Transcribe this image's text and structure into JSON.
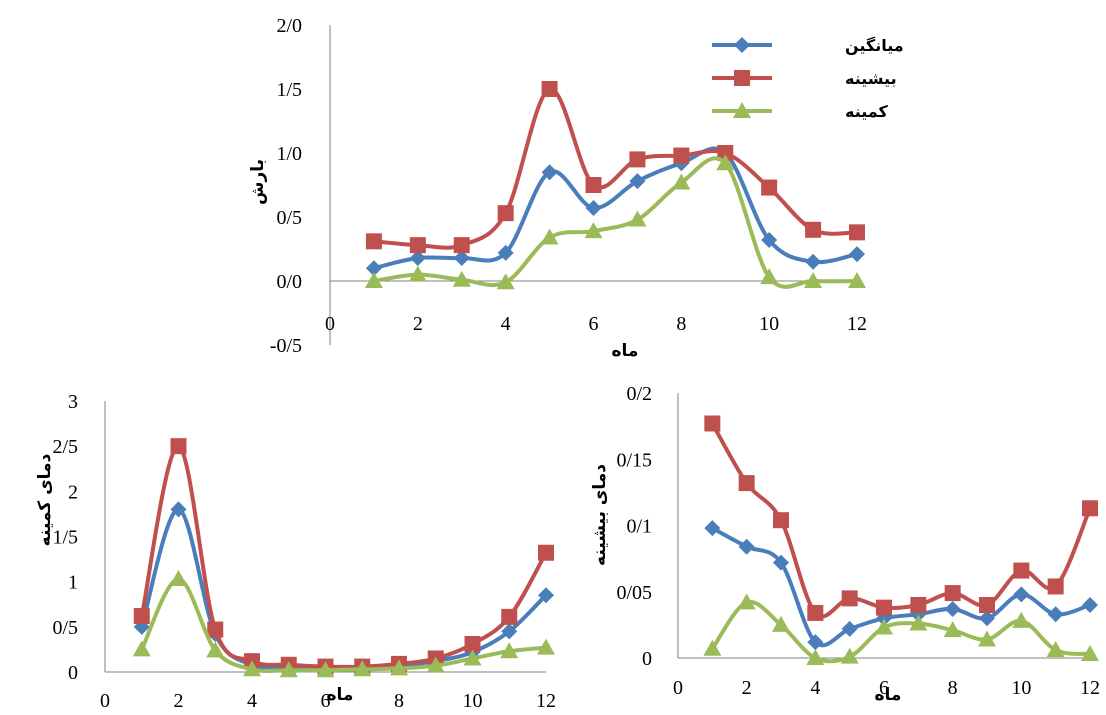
{
  "colors": {
    "mean": "#4A7EBB",
    "max": "#C0504D",
    "min": "#9BBB59",
    "axis": "#808080"
  },
  "legend": {
    "mean": "میانگین",
    "max": "بیشینه",
    "min": "کمینه",
    "placement": "top-right"
  },
  "chart_data": [
    {
      "type": "line",
      "title": "",
      "xlabel": "ماه",
      "ylabel": "بارش",
      "xlim": [
        0,
        12
      ],
      "ylim": [
        -0.5,
        2.0
      ],
      "x_ticks": [
        "0",
        "2",
        "4",
        "6",
        "8",
        "10",
        "12"
      ],
      "y_ticks": [
        "-0/5",
        "0/0",
        "0/5",
        "1/0",
        "1/5",
        "2/0"
      ],
      "x": [
        1,
        2,
        3,
        4,
        5,
        6,
        7,
        8,
        9,
        10,
        11,
        12
      ],
      "series": [
        {
          "name": "میانگین",
          "values": [
            0.1,
            0.18,
            0.18,
            0.22,
            0.85,
            0.57,
            0.78,
            0.92,
            1.0,
            0.32,
            0.15,
            0.21
          ]
        },
        {
          "name": "بیشینه",
          "values": [
            0.31,
            0.28,
            0.28,
            0.53,
            1.5,
            0.75,
            0.95,
            0.98,
            1.0,
            0.73,
            0.4,
            0.38
          ]
        },
        {
          "name": "کمینه",
          "values": [
            0.0,
            0.05,
            0.01,
            -0.01,
            0.34,
            0.39,
            0.48,
            0.77,
            0.92,
            0.03,
            0.0,
            0.0
          ]
        }
      ]
    },
    {
      "type": "line",
      "title": "",
      "xlabel": "ماه",
      "ylabel": "دمای کمینه",
      "xlim": [
        0,
        12
      ],
      "ylim": [
        0,
        3
      ],
      "x_ticks": [
        "0",
        "2",
        "4",
        "6",
        "8",
        "10",
        "12"
      ],
      "y_ticks": [
        "0",
        "0/5",
        "1",
        "1/5",
        "2",
        "2/5",
        "3"
      ],
      "x": [
        1,
        2,
        3,
        4,
        5,
        6,
        7,
        8,
        9,
        10,
        11,
        12
      ],
      "series": [
        {
          "name": "میانگین",
          "values": [
            0.5,
            1.8,
            0.42,
            0.08,
            0.06,
            0.05,
            0.05,
            0.07,
            0.12,
            0.22,
            0.45,
            0.85
          ]
        },
        {
          "name": "بیشینه",
          "values": [
            0.62,
            2.5,
            0.47,
            0.12,
            0.08,
            0.06,
            0.06,
            0.09,
            0.15,
            0.31,
            0.61,
            1.32
          ]
        },
        {
          "name": "کمینه",
          "values": [
            0.25,
            1.03,
            0.24,
            0.03,
            0.02,
            0.02,
            0.03,
            0.04,
            0.07,
            0.15,
            0.23,
            0.27
          ]
        }
      ]
    },
    {
      "type": "line",
      "title": "",
      "xlabel": "ماه",
      "ylabel": "دمای بیشینه",
      "xlim": [
        0,
        12
      ],
      "ylim": [
        0,
        0.2
      ],
      "x_ticks": [
        "0",
        "2",
        "4",
        "6",
        "8",
        "10",
        "12"
      ],
      "y_ticks": [
        "0",
        "0/05",
        "0/1",
        "0/15",
        "0/2"
      ],
      "x": [
        1,
        2,
        3,
        4,
        5,
        6,
        7,
        8,
        9,
        10,
        11,
        12
      ],
      "series": [
        {
          "name": "میانگین",
          "values": [
            0.098,
            0.084,
            0.072,
            0.012,
            0.022,
            0.03,
            0.033,
            0.037,
            0.03,
            0.048,
            0.033,
            0.04
          ]
        },
        {
          "name": "بیشینه",
          "values": [
            0.177,
            0.132,
            0.104,
            0.034,
            0.045,
            0.038,
            0.04,
            0.049,
            0.04,
            0.066,
            0.054,
            0.113
          ]
        },
        {
          "name": "کمینه",
          "values": [
            0.007,
            0.042,
            0.025,
            0.0,
            0.001,
            0.023,
            0.026,
            0.021,
            0.014,
            0.028,
            0.006,
            0.003
          ]
        }
      ]
    }
  ]
}
